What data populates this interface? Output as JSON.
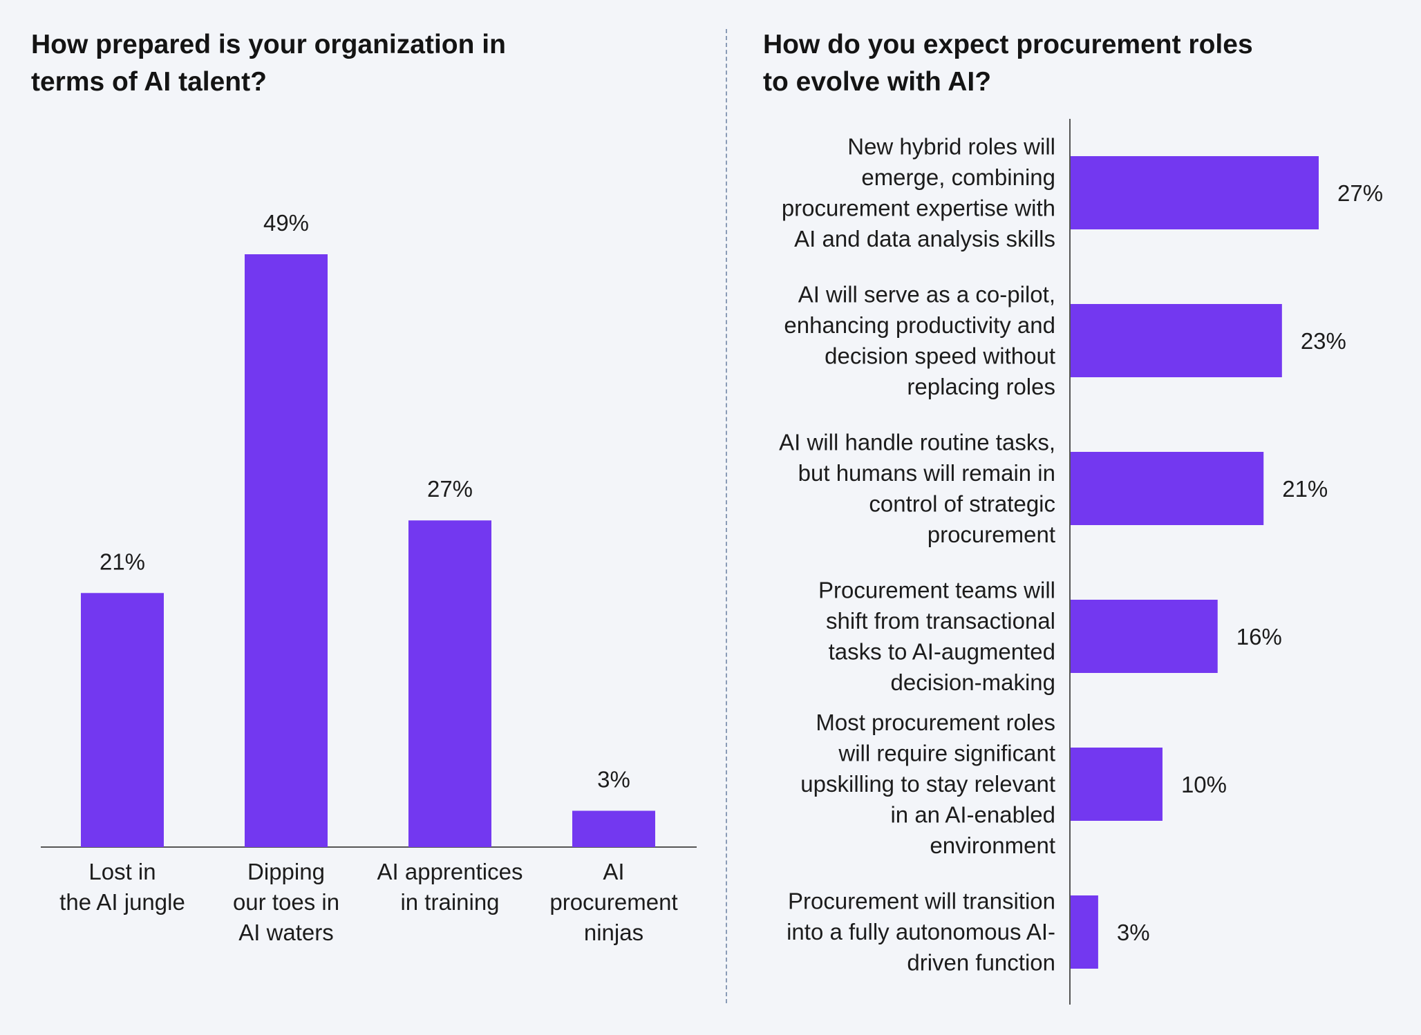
{
  "colors": {
    "bar": "#7338f0",
    "axis": "#555555",
    "background": "#f3f5f9"
  },
  "left": {
    "title_line1": "How prepared is your organization in",
    "title_line2": "terms of AI talent?"
  },
  "right": {
    "title_line1": "How do you expect procurement roles",
    "title_line2": "to evolve with AI?"
  },
  "chart_data": [
    {
      "type": "bar",
      "orientation": "vertical",
      "title": "How prepared is your organization in terms of AI talent?",
      "categories": [
        [
          "Lost in",
          "the AI jungle"
        ],
        [
          "Dipping",
          "our toes in",
          "AI waters"
        ],
        [
          "AI apprentices",
          "in training"
        ],
        [
          "AI",
          "procurement",
          "ninjas"
        ]
      ],
      "values": [
        21,
        49,
        27,
        3
      ],
      "value_labels": [
        "21%",
        "49%",
        "27%",
        "3%"
      ],
      "unit": "%",
      "ylim": [
        0,
        49
      ],
      "grid": false,
      "legend": "none"
    },
    {
      "type": "bar",
      "orientation": "horizontal",
      "title": "How do you expect procurement roles to evolve with AI?",
      "categories": [
        [
          "New hybrid roles will",
          "emerge, combining",
          "procurement expertise with",
          "AI and data analysis skills"
        ],
        [
          "AI will serve as a co-pilot,",
          "enhancing productivity and",
          "decision speed without",
          "replacing roles"
        ],
        [
          "AI will handle routine tasks,",
          "but humans will remain in",
          "control of strategic",
          "procurement"
        ],
        [
          "Procurement teams will",
          "shift from transactional",
          "tasks to AI-augmented",
          "decision-making"
        ],
        [
          "Most procurement roles",
          "will require significant",
          "upskilling to stay relevant",
          "in an AI-enabled",
          "environment"
        ],
        [
          "Procurement will transition",
          "into a fully autonomous AI-",
          "driven function"
        ]
      ],
      "values": [
        27,
        23,
        21,
        16,
        10,
        3
      ],
      "value_labels": [
        "27%",
        "23%",
        "21%",
        "16%",
        "10%",
        "3%"
      ],
      "unit": "%",
      "xlim": [
        0,
        27
      ],
      "grid": false,
      "legend": "none"
    }
  ]
}
